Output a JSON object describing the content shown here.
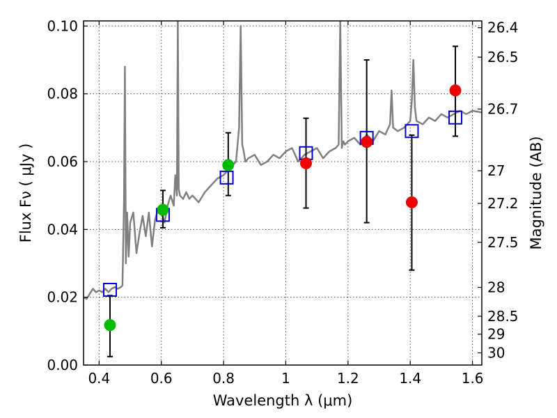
{
  "chart_data": {
    "type": "scatter",
    "xlabel": "Wavelength  λ (μm)",
    "ylabel": "Flux  Fν  ( μJy )",
    "y2label": "Magnitude (AB)",
    "xlim": [
      0.35,
      1.63
    ],
    "ylim": [
      0.0,
      0.1015
    ],
    "x_ticks": [
      0.4,
      0.6,
      0.8,
      1.0,
      1.2,
      1.4,
      1.6
    ],
    "x_tick_labels": [
      "0.4",
      "0.6",
      "0.8",
      "1",
      "1.2",
      "1.4",
      "1.6"
    ],
    "y_ticks": [
      0.0,
      0.02,
      0.04,
      0.06,
      0.08,
      0.1
    ],
    "y_tick_labels": [
      "0.00",
      "0.02",
      "0.04",
      "0.06",
      "0.08",
      "0.10"
    ],
    "y2_ticks": [
      {
        "label": "26.4",
        "flux": 0.0995
      },
      {
        "label": "26.5",
        "flux": 0.0908
      },
      {
        "label": "26.7",
        "flux": 0.0755
      },
      {
        "label": "27",
        "flux": 0.0573
      },
      {
        "label": "27.2",
        "flux": 0.0477
      },
      {
        "label": "27.5",
        "flux": 0.0362
      },
      {
        "label": "28",
        "flux": 0.0229
      },
      {
        "label": "28.5",
        "flux": 0.0144
      },
      {
        "label": "29",
        "flux": 0.0091
      },
      {
        "label": "30",
        "flux": 0.0036
      }
    ],
    "grid": true,
    "series": [
      {
        "kind": "spectrum-line",
        "color": "#808080",
        "x": [
          0.35,
          0.36,
          0.37,
          0.38,
          0.39,
          0.4,
          0.41,
          0.42,
          0.43,
          0.44,
          0.45,
          0.46,
          0.47,
          0.475,
          0.48,
          0.483,
          0.486,
          0.49,
          0.495,
          0.5,
          0.51,
          0.52,
          0.53,
          0.54,
          0.55,
          0.56,
          0.57,
          0.58,
          0.59,
          0.6,
          0.61,
          0.62,
          0.63,
          0.64,
          0.645,
          0.65,
          0.653,
          0.656,
          0.66,
          0.67,
          0.68,
          0.69,
          0.7,
          0.72,
          0.74,
          0.76,
          0.78,
          0.8,
          0.82,
          0.84,
          0.85,
          0.855,
          0.86,
          0.865,
          0.87,
          0.88,
          0.9,
          0.92,
          0.94,
          0.96,
          0.98,
          1.0,
          1.02,
          1.04,
          1.06,
          1.08,
          1.1,
          1.12,
          1.14,
          1.16,
          1.17,
          1.175,
          1.18,
          1.185,
          1.19,
          1.2,
          1.22,
          1.24,
          1.26,
          1.28,
          1.3,
          1.32,
          1.335,
          1.34,
          1.345,
          1.36,
          1.38,
          1.4,
          1.405,
          1.41,
          1.415,
          1.42,
          1.44,
          1.46,
          1.48,
          1.5,
          1.52,
          1.54,
          1.56,
          1.58,
          1.6,
          1.63
        ],
        "y": [
          0.02,
          0.0195,
          0.021,
          0.0225,
          0.0215,
          0.022,
          0.0215,
          0.0225,
          0.0215,
          0.0225,
          0.023,
          0.0225,
          0.023,
          0.0235,
          0.048,
          0.088,
          0.03,
          0.045,
          0.032,
          0.042,
          0.045,
          0.033,
          0.039,
          0.044,
          0.038,
          0.045,
          0.035,
          0.043,
          0.046,
          0.045,
          0.042,
          0.047,
          0.05,
          0.047,
          0.056,
          0.05,
          0.102,
          0.052,
          0.05,
          0.049,
          0.051,
          0.049,
          0.05,
          0.048,
          0.051,
          0.053,
          0.055,
          0.056,
          0.058,
          0.06,
          0.07,
          0.1,
          0.065,
          0.063,
          0.06,
          0.061,
          0.062,
          0.059,
          0.06,
          0.062,
          0.061,
          0.063,
          0.064,
          0.06,
          0.062,
          0.063,
          0.064,
          0.061,
          0.063,
          0.064,
          0.065,
          0.102,
          0.064,
          0.066,
          0.065,
          0.066,
          0.067,
          0.065,
          0.068,
          0.066,
          0.069,
          0.068,
          0.071,
          0.081,
          0.07,
          0.069,
          0.07,
          0.072,
          0.078,
          0.09,
          0.076,
          0.072,
          0.071,
          0.073,
          0.072,
          0.074,
          0.073,
          0.074,
          0.075,
          0.074,
          0.075,
          0.0745
        ]
      },
      {
        "kind": "model-squares",
        "color": "#0000cc",
        "x": [
          0.435,
          0.605,
          0.81,
          1.065,
          1.26,
          1.405,
          1.545
        ],
        "y": [
          0.0222,
          0.0443,
          0.0553,
          0.0625,
          0.067,
          0.069,
          0.073
        ]
      },
      {
        "kind": "observed-green",
        "color": "#00bb00",
        "x": [
          0.435,
          0.605,
          0.815
        ],
        "y": [
          0.0118,
          0.0458,
          0.059
        ],
        "err_low": [
          0.0025,
          0.0405,
          0.05
        ],
        "err_high": [
          0.0205,
          0.0515,
          0.0685
        ]
      },
      {
        "kind": "observed-red",
        "color": "#ee0000",
        "x": [
          1.065,
          1.26,
          1.405,
          1.545
        ],
        "y": [
          0.0595,
          0.0658,
          0.048,
          0.081
        ],
        "err_low": [
          0.0463,
          0.042,
          0.028,
          0.0675
        ],
        "err_high": [
          0.0728,
          0.09,
          0.0678,
          0.094
        ]
      }
    ]
  }
}
